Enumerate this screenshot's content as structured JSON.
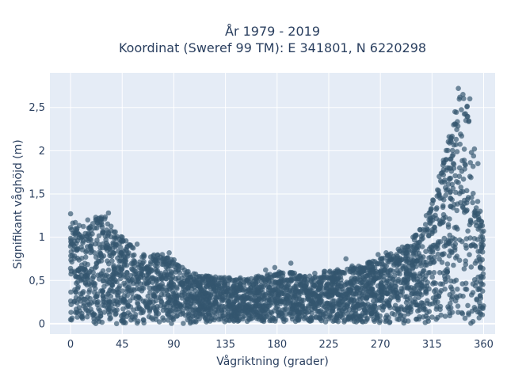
{
  "chart_data": {
    "type": "scatter",
    "title": [
      "År 1979 - 2019",
      "Koordinat (Sweref 99 TM): E 341801, N 6220298"
    ],
    "xlabel": "Vågriktning (grader)",
    "ylabel": "Signifikant våghöjd (m)",
    "xlim": [
      -18,
      370
    ],
    "ylim": [
      -0.12,
      2.9
    ],
    "x_ticks": [
      0,
      45,
      90,
      135,
      180,
      225,
      270,
      315,
      360
    ],
    "x_tick_labels": [
      "0",
      "45",
      "90",
      "135",
      "180",
      "225",
      "270",
      "315",
      "360"
    ],
    "y_ticks": [
      0,
      0.5,
      1,
      1.5,
      2,
      2.5
    ],
    "y_tick_labels": [
      "0",
      "0,5",
      "1",
      "1,5",
      "2",
      "2,5"
    ],
    "grid": true,
    "legend": "none",
    "series": [
      {
        "color": "#34566f",
        "envelope": [
          {
            "x": 0,
            "y_min": 0,
            "y_max": 1.2
          },
          {
            "x": 10,
            "y_min": 0,
            "y_max": 1.15
          },
          {
            "x": 20,
            "y_min": 0,
            "y_max": 1.2
          },
          {
            "x": 30,
            "y_min": 0,
            "y_max": 1.25
          },
          {
            "x": 40,
            "y_min": 0,
            "y_max": 1.05
          },
          {
            "x": 50,
            "y_min": 0,
            "y_max": 0.95
          },
          {
            "x": 60,
            "y_min": 0,
            "y_max": 0.8
          },
          {
            "x": 75,
            "y_min": 0,
            "y_max": 0.8
          },
          {
            "x": 90,
            "y_min": 0,
            "y_max": 0.75
          },
          {
            "x": 100,
            "y_min": 0,
            "y_max": 0.62
          },
          {
            "x": 120,
            "y_min": 0.02,
            "y_max": 0.55
          },
          {
            "x": 150,
            "y_min": 0.02,
            "y_max": 0.52
          },
          {
            "x": 180,
            "y_min": 0.02,
            "y_max": 0.6
          },
          {
            "x": 210,
            "y_min": 0.02,
            "y_max": 0.58
          },
          {
            "x": 240,
            "y_min": 0.02,
            "y_max": 0.65
          },
          {
            "x": 270,
            "y_min": 0,
            "y_max": 0.75
          },
          {
            "x": 290,
            "y_min": 0,
            "y_max": 0.9
          },
          {
            "x": 305,
            "y_min": 0,
            "y_max": 1.1
          },
          {
            "x": 315,
            "y_min": 0,
            "y_max": 1.45
          },
          {
            "x": 325,
            "y_min": 0,
            "y_max": 1.9
          },
          {
            "x": 335,
            "y_min": 0,
            "y_max": 2.45
          },
          {
            "x": 340,
            "y_min": 0,
            "y_max": 2.72
          },
          {
            "x": 345,
            "y_min": 0,
            "y_max": 2.6
          },
          {
            "x": 350,
            "y_min": 0,
            "y_max": 2.1
          },
          {
            "x": 356,
            "y_min": 0,
            "y_max": 1.3
          },
          {
            "x": 360,
            "y_min": 0,
            "y_max": 1.15
          }
        ],
        "outliers": [
          [
            0,
            1.27
          ],
          [
            15,
            1.2
          ],
          [
            22,
            1.23
          ],
          [
            27,
            1.21
          ],
          [
            33,
            1.28
          ],
          [
            38,
            1.06
          ],
          [
            45,
            1.0
          ],
          [
            58,
            0.92
          ],
          [
            80,
            0.8
          ],
          [
            86,
            0.82
          ],
          [
            120,
            0.55
          ],
          [
            148,
            0.53
          ],
          [
            170,
            0.62
          ],
          [
            178,
            0.65
          ],
          [
            192,
            0.7
          ],
          [
            240,
            0.75
          ],
          [
            268,
            0.8
          ],
          [
            275,
            0.82
          ],
          [
            300,
            1.0
          ],
          [
            310,
            1.25
          ],
          [
            322,
            1.45
          ],
          [
            325,
            1.72
          ],
          [
            335,
            2.45
          ],
          [
            338,
            2.72
          ],
          [
            342,
            2.65
          ],
          [
            348,
            2.6
          ],
          [
            352,
            2.02
          ],
          [
            355,
            1.85
          ],
          [
            357,
            1.3
          ]
        ]
      }
    ]
  }
}
